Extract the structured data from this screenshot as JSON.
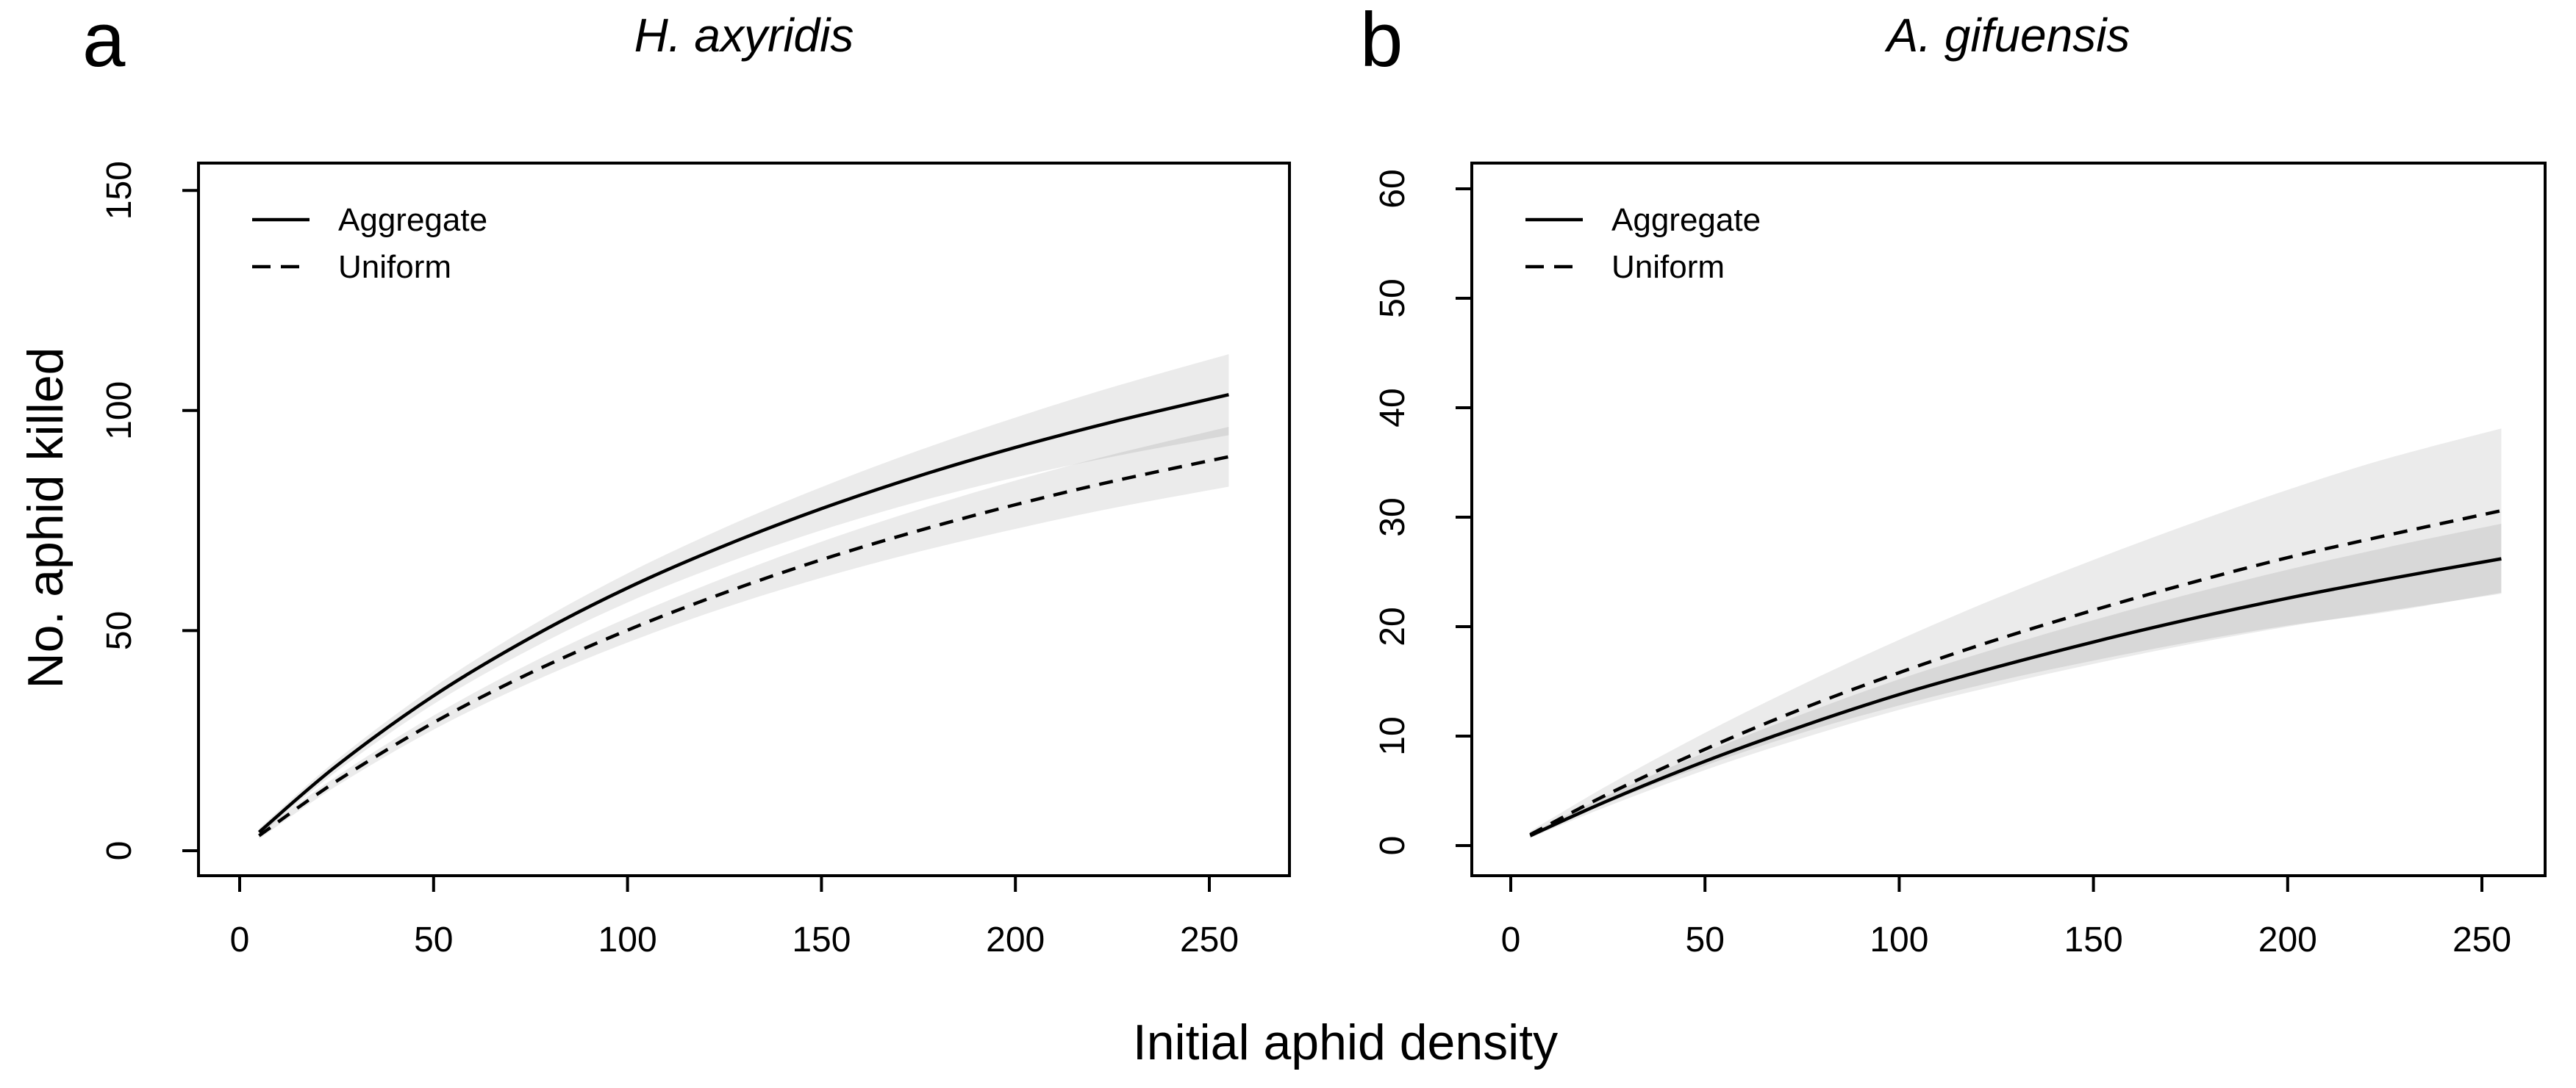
{
  "figure": {
    "x_axis_label": "Initial aphid density",
    "y_axis_label": "No. aphid killed",
    "background_color": "#ffffff",
    "axis_color": "#000000",
    "text_color": "#000000",
    "band_color": "rgba(0,0,0,0.08)"
  },
  "chart_data": [
    {
      "type": "line",
      "panel_label": "a",
      "title": "H. axyridis",
      "xlabel": "Initial aphid density",
      "ylabel": "No. aphid killed",
      "xlim": [
        0,
        260
      ],
      "ylim": [
        0,
        156
      ],
      "x_ticks": [
        0,
        50,
        100,
        150,
        200,
        250
      ],
      "y_ticks": [
        0,
        50,
        100,
        150
      ],
      "grid": false,
      "legend_position": "top-left",
      "legend": [
        "Aggregate",
        "Uniform"
      ],
      "series": [
        {
          "name": "Aggregate",
          "line_style": "solid",
          "x": [
            5,
            25,
            50,
            75,
            100,
            125,
            150,
            175,
            200,
            225,
            255
          ],
          "y": [
            4.2,
            19.3,
            35.2,
            48.4,
            59.7,
            69.3,
            77.7,
            85.1,
            91.6,
            97.4,
            103.6
          ],
          "band_half_width": [
            0.8,
            1.3,
            1.9,
            2.6,
            3.3,
            4.1,
            4.9,
            5.8,
            6.8,
            7.9,
            9.2
          ]
        },
        {
          "name": "Uniform",
          "line_style": "dashed",
          "x": [
            5,
            25,
            50,
            75,
            100,
            125,
            150,
            175,
            200,
            225,
            255
          ],
          "y": [
            3.4,
            15.8,
            29.1,
            40.4,
            50.1,
            58.6,
            66.1,
            72.7,
            78.6,
            83.9,
            89.5
          ],
          "band_half_width": [
            0.7,
            1.1,
            1.6,
            2.2,
            2.8,
            3.4,
            4.1,
            4.8,
            5.5,
            6.1,
            6.8
          ]
        }
      ]
    },
    {
      "type": "line",
      "panel_label": "b",
      "title": "A. gifuensis",
      "xlabel": "Initial aphid density",
      "ylabel": "No. aphid killed",
      "xlim": [
        0,
        260
      ],
      "ylim": [
        0,
        62
      ],
      "x_ticks": [
        0,
        50,
        100,
        150,
        200,
        250
      ],
      "y_ticks": [
        0,
        10,
        20,
        30,
        40,
        50,
        60
      ],
      "grid": false,
      "legend_position": "top-left",
      "legend": [
        "Aggregate",
        "Uniform"
      ],
      "series": [
        {
          "name": "Aggregate",
          "line_style": "solid",
          "x": [
            5,
            25,
            50,
            75,
            100,
            125,
            150,
            175,
            200,
            225,
            255
          ],
          "y": [
            0.9,
            4.1,
            7.7,
            10.9,
            13.8,
            16.3,
            18.6,
            20.7,
            22.6,
            24.3,
            26.2
          ],
          "band_half_width": [
            0.2,
            0.5,
            0.8,
            1.1,
            1.4,
            1.7,
            2.0,
            2.3,
            2.6,
            2.9,
            3.2
          ]
        },
        {
          "name": "Uniform",
          "line_style": "dashed",
          "x": [
            5,
            25,
            50,
            75,
            100,
            125,
            150,
            175,
            200,
            225,
            255
          ],
          "y": [
            1.0,
            4.7,
            8.8,
            12.5,
            15.8,
            18.8,
            21.5,
            24.0,
            26.3,
            28.3,
            30.6
          ],
          "band_half_width": [
            0.3,
            0.8,
            1.5,
            2.2,
            3.0,
            3.8,
            4.6,
            5.4,
            6.2,
            7.0,
            7.5
          ]
        }
      ]
    }
  ]
}
